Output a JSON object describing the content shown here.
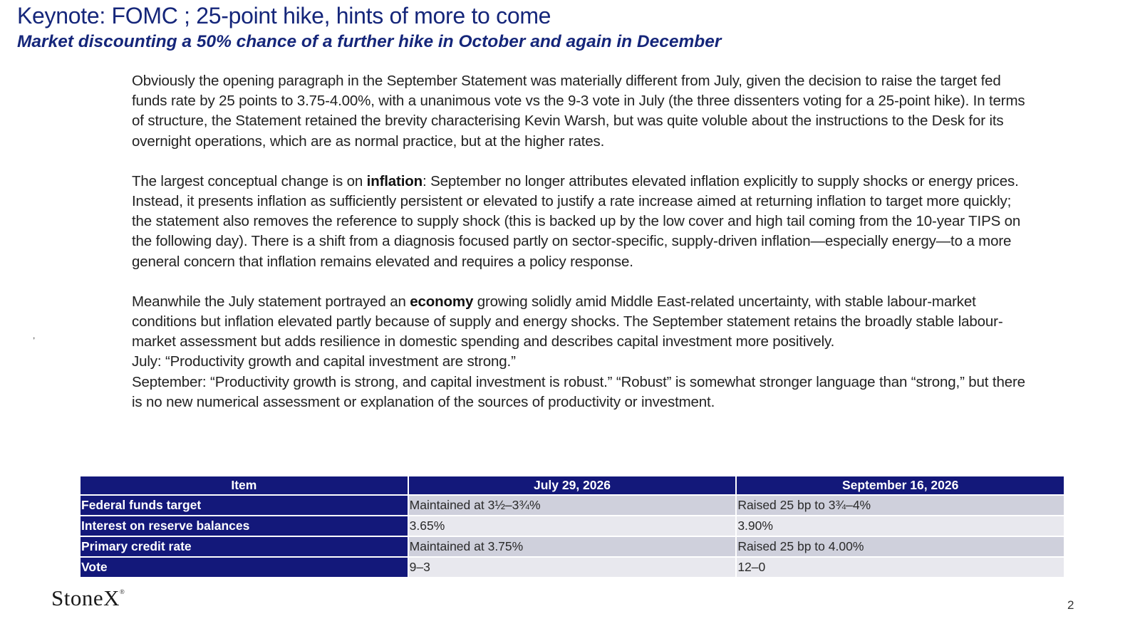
{
  "header": {
    "title": "Keynote:  FOMC ; 25-point hike, hints of more to come",
    "subtitle": "Market discounting a 50% chance of a further hike in October and again in December"
  },
  "body": {
    "p1": "Obviously the opening paragraph  in the September Statement was materially different from July, given the decision to raise the target fed funds rate by 25 points to 3.75-4.00%, with a unanimous vote vs the 9-3 vote in July (the three dissenters voting for a 25-point hike). In terms of structure, the Statement retained the brevity characterising Kevin Warsh, but was quite voluble about the instructions to the Desk for its overnight operations, which are as normal practice, but at the higher rates.",
    "p2_pre": "The largest conceptual change is on ",
    "p2_bold": "inflation",
    "p2_post": ": September no longer attributes elevated inflation explicitly to supply shocks or energy prices. Instead, it presents inflation as sufficiently persistent or elevated to justify a rate increase aimed at returning inflation to target more quickly; the statement also removes the reference to supply shock (this is backed up by the low cover and high tail coming from the 10-year TIPS on the following day).  There is a shift from a diagnosis focused partly on sector-specific, supply-driven inflation—especially energy—to a more general concern that inflation remains elevated and requires a policy response.",
    "p3_pre": "Meanwhile the July statement portrayed an ",
    "p3_bold": "economy",
    "p3_post": " growing solidly amid Middle East-related uncertainty, with stable labour-market conditions but inflation elevated partly because of supply and energy shocks. The September statement retains the broadly stable labour-market assessment but adds resilience in domestic spending and describes capital investment more positively.",
    "july_quote": "July: “Productivity growth and capital investment are strong.”",
    "sept_quote": "September: “Productivity growth is strong, and capital investment is robust.” “Robust” is somewhat stronger language than “strong,” but there is no new numerical assessment or explanation of the sources of productivity or investment.",
    "stray_mark": ","
  },
  "table": {
    "headers": [
      "Item",
      "July 29, 2026",
      "September 16, 2026"
    ],
    "rows": [
      [
        "Federal funds target",
        "Maintained at 3½–3¾%",
        "Raised 25 bp to 3¾–4%"
      ],
      [
        "Interest on reserve balances",
        "3.65%",
        "3.90%"
      ],
      [
        "Primary credit rate",
        "Maintained at 3.75%",
        "Raised 25 bp to 4.00%"
      ],
      [
        "Vote",
        "9–3",
        "12–0"
      ]
    ]
  },
  "footer": {
    "logo_text": "StoneX",
    "logo_mark": "®",
    "page_number": "2"
  },
  "colors": {
    "title": "#15267a",
    "table_header": "#13187a",
    "table_row_odd": "#cfd0dc",
    "table_row_even": "#e8e8ee"
  }
}
